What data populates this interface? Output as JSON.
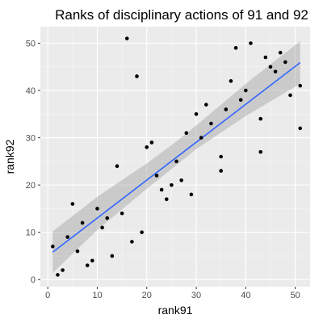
{
  "chart_data": {
    "type": "scatter",
    "title": "Ranks of disciplinary actions of 91 and 92",
    "xlabel": "rank91",
    "ylabel": "rank92",
    "xlim": [
      -1.5,
      53.0
    ],
    "ylim": [
      -1.5,
      53.5
    ],
    "x_ticks": [
      0,
      10,
      20,
      30,
      40,
      50
    ],
    "y_ticks": [
      0,
      10,
      20,
      30,
      40,
      50
    ],
    "grid": true,
    "legend": "none",
    "points": [
      {
        "x": 1,
        "y": 7
      },
      {
        "x": 2,
        "y": 1
      },
      {
        "x": 3,
        "y": 2
      },
      {
        "x": 4,
        "y": 9
      },
      {
        "x": 5,
        "y": 16
      },
      {
        "x": 6,
        "y": 6
      },
      {
        "x": 7,
        "y": 12
      },
      {
        "x": 8,
        "y": 3
      },
      {
        "x": 9,
        "y": 4
      },
      {
        "x": 10,
        "y": 15
      },
      {
        "x": 11,
        "y": 11
      },
      {
        "x": 12,
        "y": 13
      },
      {
        "x": 13,
        "y": 5
      },
      {
        "x": 14,
        "y": 24
      },
      {
        "x": 15,
        "y": 14
      },
      {
        "x": 16,
        "y": 51
      },
      {
        "x": 17,
        "y": 8
      },
      {
        "x": 18,
        "y": 43
      },
      {
        "x": 19,
        "y": 10
      },
      {
        "x": 20,
        "y": 28
      },
      {
        "x": 21,
        "y": 29
      },
      {
        "x": 22,
        "y": 22
      },
      {
        "x": 23,
        "y": 19
      },
      {
        "x": 24,
        "y": 17
      },
      {
        "x": 25,
        "y": 20
      },
      {
        "x": 26,
        "y": 25
      },
      {
        "x": 27,
        "y": 21
      },
      {
        "x": 28,
        "y": 31
      },
      {
        "x": 29,
        "y": 18
      },
      {
        "x": 30,
        "y": 35
      },
      {
        "x": 31,
        "y": 30
      },
      {
        "x": 32,
        "y": 37
      },
      {
        "x": 33,
        "y": 33
      },
      {
        "x": 35,
        "y": 26
      },
      {
        "x": 35,
        "y": 23
      },
      {
        "x": 36,
        "y": 36
      },
      {
        "x": 37,
        "y": 42
      },
      {
        "x": 38,
        "y": 49
      },
      {
        "x": 39,
        "y": 38
      },
      {
        "x": 40,
        "y": 40
      },
      {
        "x": 41,
        "y": 50
      },
      {
        "x": 43,
        "y": 34
      },
      {
        "x": 43,
        "y": 27
      },
      {
        "x": 44,
        "y": 47
      },
      {
        "x": 45,
        "y": 45
      },
      {
        "x": 46,
        "y": 44
      },
      {
        "x": 47,
        "y": 48
      },
      {
        "x": 48,
        "y": 46
      },
      {
        "x": 49,
        "y": 39
      },
      {
        "x": 51,
        "y": 41
      },
      {
        "x": 51,
        "y": 32
      }
    ],
    "trend_line": {
      "x": [
        1,
        51
      ],
      "y": [
        5.8,
        45.9
      ]
    },
    "confidence_band": {
      "x": [
        1,
        10,
        20,
        26,
        30,
        40,
        51
      ],
      "lower": [
        1.4,
        10.5,
        19.2,
        24.2,
        27.6,
        34.6,
        41.4
      ],
      "upper": [
        10.2,
        17.5,
        24.6,
        29.2,
        32.6,
        41.4,
        50.4
      ]
    },
    "colors": {
      "panel": "#ebebeb",
      "grid_major": "#ffffff",
      "grid_minor": "#f5f5f5",
      "points": "#000000",
      "trend_line": "#3366ff",
      "band": "#999999",
      "ticks": "#333333"
    }
  }
}
